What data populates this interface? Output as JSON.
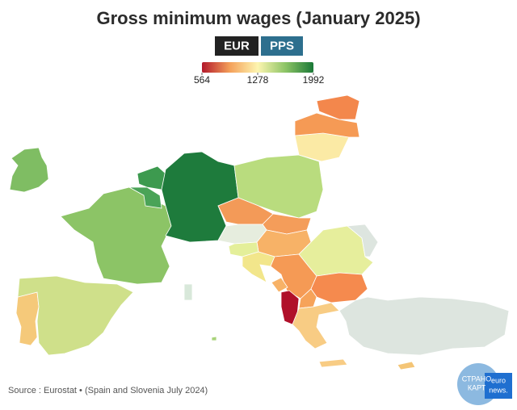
{
  "header": {
    "title": "Gross minimum wages (January 2025)"
  },
  "toggle": {
    "options": [
      "EUR",
      "PPS"
    ]
  },
  "legend": {
    "min": 564,
    "max": 1992,
    "ticks": [
      564,
      1278,
      1992
    ]
  },
  "footer": {
    "source": "Source : Eurostat • (Spain and Slovenia July 2024)"
  },
  "logo": {
    "top": "СТРАНО",
    "bottom": "КАРТ",
    "brand": "euro",
    "brand2": "news."
  }
}
